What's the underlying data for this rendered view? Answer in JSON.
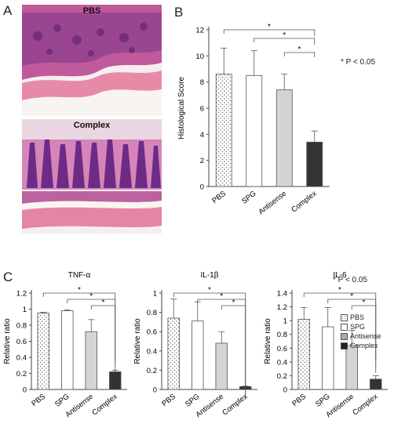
{
  "panels": {
    "a": "A",
    "b": "B",
    "c": "C"
  },
  "histology": {
    "top_label": "PBS",
    "bottom_label": "Complex"
  },
  "pvalue_note_b": "* P < 0.05",
  "pvalue_note_c": "* P < 0.05",
  "legend": [
    "PBS",
    "SPG",
    "Antisense",
    "Complex"
  ],
  "chart_data": [
    {
      "type": "bar",
      "panel": "B",
      "categories": [
        "PBS",
        "SPG",
        "Antisense",
        "Complex"
      ],
      "values": [
        8.6,
        8.5,
        7.4,
        3.4
      ],
      "errors": [
        2.0,
        1.9,
        1.2,
        0.85
      ],
      "title": "",
      "xlabel": "",
      "ylabel": "Histological Score",
      "ylim": [
        0,
        12
      ],
      "yticks": [
        "0",
        "2",
        "4",
        "6",
        "8",
        "10",
        "12"
      ],
      "significance": [
        "*",
        "*",
        "*"
      ],
      "grid": false
    },
    {
      "type": "bar",
      "panel": "C",
      "categories": [
        "PBS",
        "SPG",
        "Antisense",
        "Complex"
      ],
      "values": [
        0.95,
        0.98,
        0.72,
        0.22
      ],
      "errors": [
        0.01,
        0.01,
        0.15,
        0.02
      ],
      "title": "TNF-α",
      "xlabel": "",
      "ylabel": "Relative ratio",
      "ylim": [
        0,
        1.2
      ],
      "yticks": [
        "0",
        "0.2",
        "0.4",
        "0.6",
        "0.8",
        "1",
        "1.2"
      ],
      "significance": [
        "*",
        "*",
        "*"
      ],
      "grid": false
    },
    {
      "type": "bar",
      "panel": "C",
      "categories": [
        "PBS",
        "SPG",
        "Antisense",
        "Complex"
      ],
      "values": [
        0.74,
        0.71,
        0.48,
        0.03
      ],
      "errors": [
        0.2,
        0.2,
        0.12,
        0.005
      ],
      "title": "IL-1β",
      "xlabel": "",
      "ylabel": "Relative ratio",
      "ylim": [
        0,
        1
      ],
      "yticks": [
        "0",
        "0.2",
        "0.4",
        "0.6",
        "0.8",
        "1"
      ],
      "significance": [
        "*",
        "*",
        "*"
      ],
      "grid": false
    },
    {
      "type": "bar",
      "panel": "C",
      "categories": [
        "PBS",
        "SPG",
        "Antisense",
        "Complex"
      ],
      "values": [
        1.02,
        0.91,
        0.64,
        0.15
      ],
      "errors": [
        0.17,
        0.28,
        0.22,
        0.05
      ],
      "title": "IL-6",
      "xlabel": "",
      "ylabel": "Relative ratio",
      "ylim": [
        0,
        1.4
      ],
      "yticks": [
        "0",
        "0.2",
        "0.4",
        "0.6",
        "0.8",
        "1",
        "1.2",
        "1.4"
      ],
      "significance": [
        "*",
        "*",
        "*"
      ],
      "grid": false
    }
  ]
}
